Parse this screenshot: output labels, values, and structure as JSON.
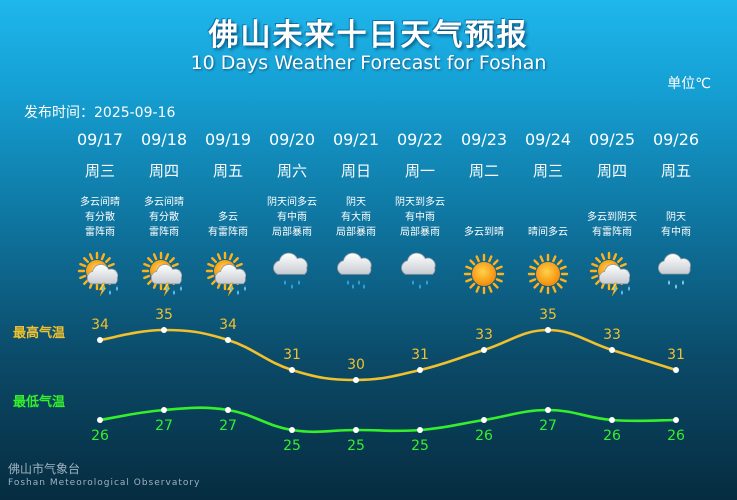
{
  "header": {
    "title_cn": "佛山未来十日天气预报",
    "title_en": "10 Days Weather Forecast for Foshan",
    "unit": "单位℃",
    "publish": "发布时间：2025-09-16"
  },
  "labels": {
    "high": "最高气温",
    "low": "最低气温"
  },
  "colors": {
    "high": "#f1c02d",
    "low": "#34f02c"
  },
  "footer": {
    "org_cn": "佛山市气象台",
    "org_en": "Foshan Meteorological Observatory"
  },
  "days": [
    {
      "date": "09/17",
      "weekday": "周三",
      "desc": [
        "多云间晴",
        "有分散",
        "雷阵雨"
      ],
      "icon": "sun-cloud-thunder-icon"
    },
    {
      "date": "09/18",
      "weekday": "周四",
      "desc": [
        "多云间晴",
        "有分散",
        "雷阵雨"
      ],
      "icon": "sun-cloud-thunder-icon"
    },
    {
      "date": "09/19",
      "weekday": "周五",
      "desc": [
        "多云",
        "有雷阵雨"
      ],
      "icon": "sun-cloud-thunder-icon"
    },
    {
      "date": "09/20",
      "weekday": "周六",
      "desc": [
        "阴天间多云",
        "有中雨",
        "局部暴雨"
      ],
      "icon": "cloud-rain-icon"
    },
    {
      "date": "09/21",
      "weekday": "周日",
      "desc": [
        "阴天",
        "有大雨",
        "局部暴雨"
      ],
      "icon": "cloud-heavy-rain-icon"
    },
    {
      "date": "09/22",
      "weekday": "周一",
      "desc": [
        "阴天到多云",
        "有中雨",
        "局部暴雨"
      ],
      "icon": "cloud-rain-icon"
    },
    {
      "date": "09/23",
      "weekday": "周二",
      "desc": [
        "多云到晴"
      ],
      "icon": "sun-icon"
    },
    {
      "date": "09/24",
      "weekday": "周三",
      "desc": [
        "晴间多云"
      ],
      "icon": "sun-icon"
    },
    {
      "date": "09/25",
      "weekday": "周四",
      "desc": [
        "多云到阴天",
        "有雷阵雨"
      ],
      "icon": "sun-cloud-thunder-icon"
    },
    {
      "date": "09/26",
      "weekday": "周五",
      "desc": [
        "阴天",
        "有中雨"
      ],
      "icon": "cloud-light-rain-icon"
    }
  ],
  "chart_data": {
    "type": "line",
    "categories": [
      "09/17",
      "09/18",
      "09/19",
      "09/20",
      "09/21",
      "09/22",
      "09/23",
      "09/24",
      "09/25",
      "09/26"
    ],
    "series": [
      {
        "name": "最高气温",
        "values": [
          34,
          35,
          34,
          31,
          30,
          31,
          33,
          35,
          33,
          31
        ]
      },
      {
        "name": "最低气温",
        "values": [
          26,
          27,
          27,
          25,
          25,
          25,
          26,
          27,
          26,
          26
        ]
      }
    ]
  }
}
